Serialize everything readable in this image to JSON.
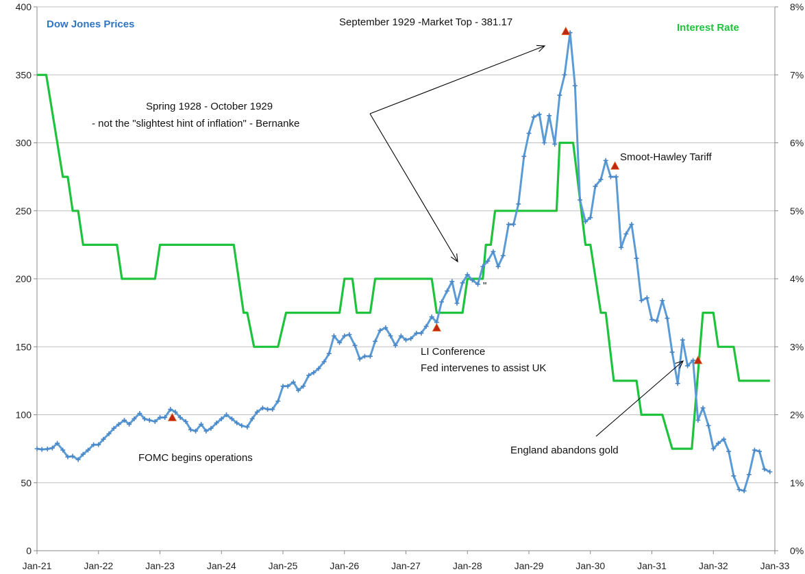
{
  "chart_data": {
    "type": "line",
    "title": "",
    "x": [
      "Jan-21",
      "Jan-22",
      "Jan-23",
      "Jan-24",
      "Jan-25",
      "Jan-26",
      "Jan-27",
      "Jan-28",
      "Jan-29",
      "Jan-30",
      "Jan-31",
      "Jan-32",
      "Jan-33"
    ],
    "y_left": {
      "lim": [
        0,
        400
      ],
      "ticks": [
        "0",
        "50",
        "100",
        "150",
        "200",
        "250",
        "300",
        "350",
        "400"
      ]
    },
    "y_right": {
      "lim": [
        0,
        8
      ],
      "ticks": [
        "0%",
        "1%",
        "2%",
        "3%",
        "4%",
        "5%",
        "6%",
        "7%",
        "8%"
      ]
    },
    "grid": true,
    "colors": {
      "dow": "#5b9bd5",
      "rate": "#1ec23c",
      "dow_label": "#2f75c0",
      "rate_label": "#1ec23c",
      "marker": "#c0280f",
      "grid": "#c0c0c0",
      "arrow": "#000000"
    },
    "series": [
      {
        "name": "Dow Jones Prices",
        "axis": "left",
        "points": [
          [
            1921.0,
            75
          ],
          [
            1921.08,
            74.5
          ],
          [
            1921.17,
            74.8
          ],
          [
            1921.25,
            75.5
          ],
          [
            1921.33,
            79
          ],
          [
            1921.42,
            74
          ],
          [
            1921.5,
            69
          ],
          [
            1921.58,
            69.5
          ],
          [
            1921.67,
            67
          ],
          [
            1921.75,
            71
          ],
          [
            1921.83,
            74
          ],
          [
            1921.92,
            78
          ],
          [
            1922.0,
            78
          ],
          [
            1922.08,
            82
          ],
          [
            1922.17,
            86
          ],
          [
            1922.25,
            90
          ],
          [
            1922.33,
            93
          ],
          [
            1922.42,
            96
          ],
          [
            1922.5,
            93
          ],
          [
            1922.58,
            97
          ],
          [
            1922.67,
            101
          ],
          [
            1922.75,
            97
          ],
          [
            1922.83,
            96
          ],
          [
            1922.92,
            95
          ],
          [
            1923.0,
            98
          ],
          [
            1923.08,
            98
          ],
          [
            1923.17,
            104
          ],
          [
            1923.25,
            102
          ],
          [
            1923.33,
            98
          ],
          [
            1923.42,
            95
          ],
          [
            1923.5,
            89
          ],
          [
            1923.58,
            88
          ],
          [
            1923.67,
            93
          ],
          [
            1923.75,
            88
          ],
          [
            1923.83,
            90
          ],
          [
            1923.92,
            94
          ],
          [
            1924.0,
            97
          ],
          [
            1924.08,
            100
          ],
          [
            1924.17,
            97
          ],
          [
            1924.25,
            94
          ],
          [
            1924.33,
            92
          ],
          [
            1924.42,
            91
          ],
          [
            1924.5,
            97
          ],
          [
            1924.58,
            102
          ],
          [
            1924.67,
            105
          ],
          [
            1924.75,
            104
          ],
          [
            1924.83,
            104
          ],
          [
            1924.92,
            110
          ],
          [
            1925.0,
            121
          ],
          [
            1925.08,
            121
          ],
          [
            1925.17,
            124
          ],
          [
            1925.25,
            118
          ],
          [
            1925.33,
            121
          ],
          [
            1925.42,
            129
          ],
          [
            1925.5,
            131
          ],
          [
            1925.58,
            134
          ],
          [
            1925.67,
            139
          ],
          [
            1925.75,
            145
          ],
          [
            1925.83,
            158
          ],
          [
            1925.92,
            153
          ],
          [
            1926.0,
            158
          ],
          [
            1926.08,
            159
          ],
          [
            1926.17,
            151
          ],
          [
            1926.25,
            141
          ],
          [
            1926.33,
            143
          ],
          [
            1926.42,
            143
          ],
          [
            1926.5,
            154
          ],
          [
            1926.58,
            162
          ],
          [
            1926.67,
            164
          ],
          [
            1926.75,
            158
          ],
          [
            1926.83,
            151
          ],
          [
            1926.92,
            158
          ],
          [
            1927.0,
            155
          ],
          [
            1927.08,
            156
          ],
          [
            1927.17,
            160
          ],
          [
            1927.25,
            160
          ],
          [
            1927.33,
            165
          ],
          [
            1927.42,
            172
          ],
          [
            1927.5,
            168
          ],
          [
            1927.58,
            183
          ],
          [
            1927.67,
            191
          ],
          [
            1927.75,
            198
          ],
          [
            1927.83,
            182
          ],
          [
            1927.92,
            197
          ],
          [
            1928.0,
            203
          ],
          [
            1928.08,
            199
          ],
          [
            1928.17,
            196
          ],
          [
            1928.25,
            209
          ],
          [
            1928.33,
            213
          ],
          [
            1928.42,
            220
          ],
          [
            1928.5,
            209
          ],
          [
            1928.58,
            217
          ],
          [
            1928.67,
            240
          ],
          [
            1928.75,
            240
          ],
          [
            1928.83,
            255
          ],
          [
            1928.92,
            290
          ],
          [
            1929.0,
            307
          ],
          [
            1929.08,
            319
          ],
          [
            1929.17,
            321
          ],
          [
            1929.25,
            300
          ],
          [
            1929.33,
            320
          ],
          [
            1929.42,
            299
          ],
          [
            1929.5,
            335
          ],
          [
            1929.58,
            350
          ],
          [
            1929.67,
            381
          ],
          [
            1929.75,
            342
          ],
          [
            1929.83,
            258
          ],
          [
            1929.92,
            242
          ],
          [
            1930.0,
            245
          ],
          [
            1930.08,
            268
          ],
          [
            1930.17,
            273
          ],
          [
            1930.25,
            287
          ],
          [
            1930.33,
            275
          ],
          [
            1930.42,
            275
          ],
          [
            1930.5,
            223
          ],
          [
            1930.58,
            233
          ],
          [
            1930.67,
            240
          ],
          [
            1930.75,
            215
          ],
          [
            1930.83,
            184
          ],
          [
            1930.92,
            186
          ],
          [
            1931.0,
            170
          ],
          [
            1931.08,
            169
          ],
          [
            1931.17,
            184
          ],
          [
            1931.25,
            171
          ],
          [
            1931.33,
            146
          ],
          [
            1931.42,
            123
          ],
          [
            1931.5,
            155
          ],
          [
            1931.58,
            136
          ],
          [
            1931.67,
            140
          ],
          [
            1931.75,
            96
          ],
          [
            1931.83,
            105
          ],
          [
            1931.92,
            92
          ],
          [
            1932.0,
            75
          ],
          [
            1932.08,
            79
          ],
          [
            1932.17,
            82
          ],
          [
            1932.25,
            73
          ],
          [
            1932.33,
            55
          ],
          [
            1932.42,
            45
          ],
          [
            1932.5,
            44
          ],
          [
            1932.58,
            56
          ],
          [
            1932.67,
            74
          ],
          [
            1932.75,
            73
          ],
          [
            1932.83,
            60
          ],
          [
            1932.92,
            58
          ]
        ]
      },
      {
        "name": "Interest Rate",
        "axis": "right",
        "points": [
          [
            1921.0,
            7
          ],
          [
            1921.15,
            7
          ],
          [
            1921.42,
            5.5
          ],
          [
            1921.5,
            5.5
          ],
          [
            1921.58,
            5
          ],
          [
            1921.67,
            5
          ],
          [
            1921.75,
            4.5
          ],
          [
            1922.3,
            4.5
          ],
          [
            1922.38,
            4
          ],
          [
            1922.92,
            4
          ],
          [
            1923.0,
            4.5
          ],
          [
            1924.2,
            4.5
          ],
          [
            1924.36,
            3.5
          ],
          [
            1924.42,
            3.5
          ],
          [
            1924.53,
            3
          ],
          [
            1924.92,
            3
          ],
          [
            1925.05,
            3.5
          ],
          [
            1925.92,
            3.5
          ],
          [
            1926.0,
            4
          ],
          [
            1926.13,
            4
          ],
          [
            1926.2,
            3.5
          ],
          [
            1926.42,
            3.5
          ],
          [
            1926.5,
            4
          ],
          [
            1927.42,
            4
          ],
          [
            1927.5,
            3.5
          ],
          [
            1927.92,
            3.5
          ],
          [
            1928.0,
            4
          ],
          [
            1928.25,
            4
          ],
          [
            1928.3,
            4.5
          ],
          [
            1928.38,
            4.5
          ],
          [
            1928.45,
            5
          ],
          [
            1929.45,
            5
          ],
          [
            1929.5,
            6
          ],
          [
            1929.72,
            6
          ],
          [
            1929.92,
            4.5
          ],
          [
            1930.0,
            4.5
          ],
          [
            1930.17,
            3.5
          ],
          [
            1930.25,
            3.5
          ],
          [
            1930.38,
            2.5
          ],
          [
            1930.75,
            2.5
          ],
          [
            1930.83,
            2
          ],
          [
            1931.17,
            2
          ],
          [
            1931.33,
            1.5
          ],
          [
            1931.65,
            1.5
          ],
          [
            1931.83,
            3.5
          ],
          [
            1932.0,
            3.5
          ],
          [
            1932.08,
            3
          ],
          [
            1932.33,
            3
          ],
          [
            1932.42,
            2.5
          ],
          [
            1932.92,
            2.5
          ]
        ]
      }
    ],
    "markers": [
      {
        "label": "FOMC begins operations",
        "x": 1923.2,
        "y": 98
      },
      {
        "label": "LI Conference",
        "x": 1927.5,
        "y": 164
      },
      {
        "label": "September 1929 -Market Top - 381.17",
        "x": 1929.6,
        "y": 382
      },
      {
        "label": "Smoot-Hawley Tariff",
        "x": 1930.4,
        "y": 283
      },
      {
        "label": "England abandons gold",
        "x": 1931.75,
        "y": 140
      }
    ],
    "annotations": {
      "market_top": "September 1929  -Market Top - 381.17",
      "spring_line1": "Spring 1928  - October 1929",
      "spring_line2": "- not the \"slightest hint of inflation\" - Bernanke",
      "smoot": "Smoot-Hawley Tariff",
      "li_line1": "LI Conference",
      "li_line2": "Fed intervenes to assist UK",
      "fomc": "FOMC begins operations",
      "england": "England abandons gold",
      "quote_mark": "\""
    },
    "legend": {
      "left": "Dow Jones Prices",
      "right": "Interest Rate"
    }
  }
}
